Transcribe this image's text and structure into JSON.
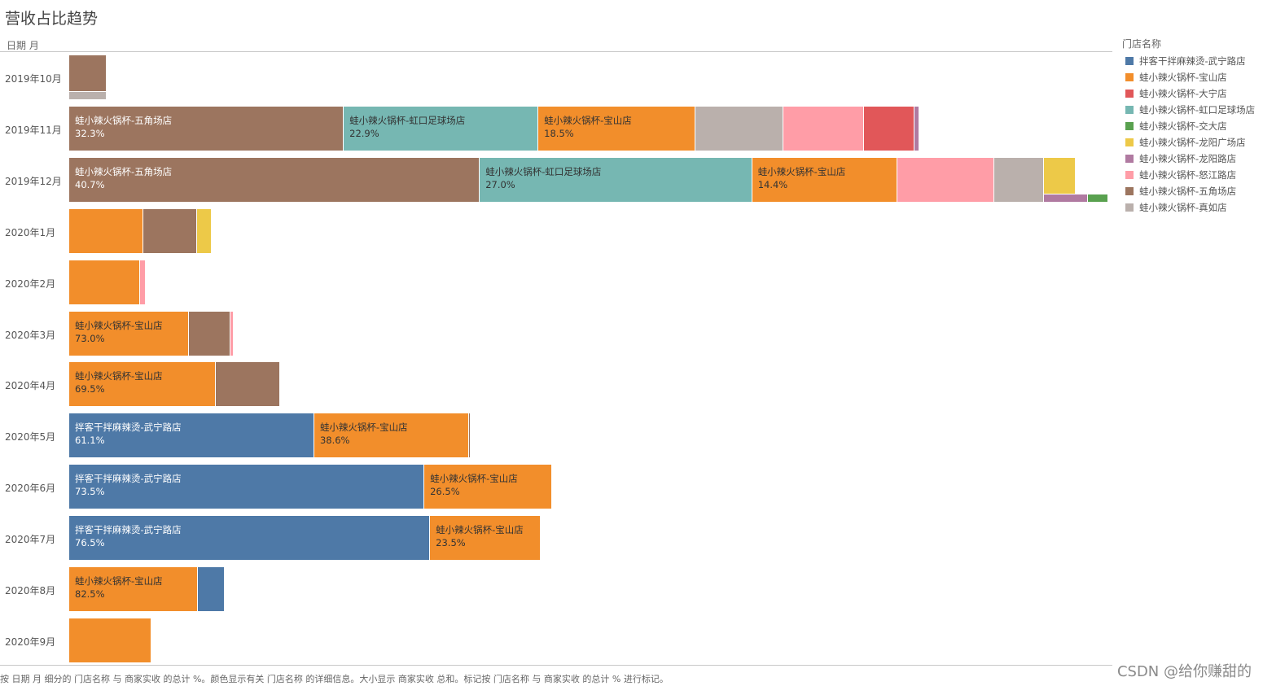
{
  "title": "营收占比趋势",
  "row_header": "日期 月",
  "legend_title": "门店名称",
  "caption": "按 日期 月 细分的 门店名称 与 商家实收 的总计 %。颜色显示有关 门店名称 的详细信息。大小显示 商家实收 总和。标记按 门店名称 与 商家实收 的总计 % 进行标记。",
  "watermark": "CSDN @给你赚甜的",
  "stores": [
    {
      "name": "拌客干拌麻辣烫-武宁路店",
      "color": "#4e79a7",
      "label_color": "#ffffff"
    },
    {
      "name": "蛙小辣火锅杯-宝山店",
      "color": "#f28e2b",
      "label_color": "#333333"
    },
    {
      "name": "蛙小辣火锅杯-大宁店",
      "color": "#e15759",
      "label_color": "#ffffff"
    },
    {
      "name": "蛙小辣火锅杯-虹口足球场店",
      "color": "#76b7b2",
      "label_color": "#333333"
    },
    {
      "name": "蛙小辣火锅杯-交大店",
      "color": "#59a14f",
      "label_color": "#ffffff"
    },
    {
      "name": "蛙小辣火锅杯-龙阳广场店",
      "color": "#edc948",
      "label_color": "#333333"
    },
    {
      "name": "蛙小辣火锅杯-龙阳路店",
      "color": "#b07aa1",
      "label_color": "#ffffff"
    },
    {
      "name": "蛙小辣火锅杯-怒江路店",
      "color": "#ff9da7",
      "label_color": "#333333"
    },
    {
      "name": "蛙小辣火锅杯-五角场店",
      "color": "#9c755f",
      "label_color": "#ffffff"
    },
    {
      "name": "蛙小辣火锅杯-真如店",
      "color": "#bab0ac",
      "label_color": "#333333"
    }
  ],
  "chart_data": {
    "type": "bar",
    "orientation": "horizontal",
    "stacked": true,
    "size_scale_max": 100,
    "categories": [
      "2019年10月",
      "2019年11月",
      "2019年12月",
      "2020年1月",
      "2020年2月",
      "2020年3月",
      "2020年4月",
      "2020年5月",
      "2020年6月",
      "2020年7月",
      "2020年8月",
      "2020年9月"
    ],
    "months": [
      {
        "label": "2019年10月",
        "total": 3.6,
        "segments": [
          {
            "store": 8,
            "pct": 80.0
          },
          {
            "store": 9,
            "pct": 20.0
          }
        ]
      },
      {
        "label": "2019年11月",
        "total": 81.8,
        "segments": [
          {
            "store": 8,
            "pct": 32.3,
            "label": "32.3%"
          },
          {
            "store": 3,
            "pct": 22.9,
            "label": "22.9%"
          },
          {
            "store": 1,
            "pct": 18.5,
            "label": "18.5%"
          },
          {
            "store": 9,
            "pct": 10.3
          },
          {
            "store": 7,
            "pct": 9.5
          },
          {
            "store": 2,
            "pct": 5.9
          },
          {
            "store": 6,
            "pct": 0.6
          }
        ]
      },
      {
        "label": "2019年12月",
        "total": 100,
        "segments": [
          {
            "store": 8,
            "pct": 40.7,
            "label": "40.7%"
          },
          {
            "store": 3,
            "pct": 27.0,
            "label": "27.0%"
          },
          {
            "store": 1,
            "pct": 14.4,
            "label": "14.4%"
          },
          {
            "store": 7,
            "pct": 9.6
          },
          {
            "store": 9,
            "pct": 4.9
          },
          {
            "store": 5,
            "pct": 3.2
          },
          {
            "store": 6,
            "pct": 2.2
          },
          {
            "store": 4,
            "pct": 1.0
          }
        ]
      },
      {
        "label": "2020年1月",
        "total": 13.7,
        "segments": [
          {
            "store": 1,
            "pct": 52.0
          },
          {
            "store": 8,
            "pct": 38.0
          },
          {
            "store": 5,
            "pct": 10.0
          }
        ]
      },
      {
        "label": "2020年2月",
        "total": 7.4,
        "segments": [
          {
            "store": 1,
            "pct": 92.0
          },
          {
            "store": 7,
            "pct": 8.0
          }
        ]
      },
      {
        "label": "2020年3月",
        "total": 15.8,
        "segments": [
          {
            "store": 1,
            "pct": 73.0,
            "label": "73.0%"
          },
          {
            "store": 8,
            "pct": 25.0
          },
          {
            "store": 7,
            "pct": 2.0
          }
        ]
      },
      {
        "label": "2020年4月",
        "total": 20.3,
        "segments": [
          {
            "store": 1,
            "pct": 69.5,
            "label": "69.5%"
          },
          {
            "store": 8,
            "pct": 30.5
          }
        ]
      },
      {
        "label": "2020年5月",
        "total": 38.6,
        "segments": [
          {
            "store": 0,
            "pct": 61.1,
            "label": "61.1%"
          },
          {
            "store": 1,
            "pct": 38.6,
            "label": "38.6%"
          },
          {
            "store": 8,
            "pct": 0.3
          }
        ]
      },
      {
        "label": "2020年6月",
        "total": 46.5,
        "segments": [
          {
            "store": 0,
            "pct": 73.5,
            "label": "73.5%"
          },
          {
            "store": 1,
            "pct": 26.5,
            "label": "26.5%"
          }
        ]
      },
      {
        "label": "2020年7月",
        "total": 45.4,
        "segments": [
          {
            "store": 0,
            "pct": 76.5,
            "label": "76.5%"
          },
          {
            "store": 1,
            "pct": 23.5,
            "label": "23.5%"
          }
        ]
      },
      {
        "label": "2020年8月",
        "total": 15.0,
        "segments": [
          {
            "store": 1,
            "pct": 82.5,
            "label": "82.5%"
          },
          {
            "store": 0,
            "pct": 17.5
          }
        ]
      },
      {
        "label": "2020年9月",
        "total": 7.9,
        "segments": [
          {
            "store": 1,
            "pct": 100.0
          }
        ]
      }
    ],
    "sub_segments": [
      {
        "month": 2,
        "store": 6,
        "pct": 2.2
      },
      {
        "month": 2,
        "store": 4,
        "pct": 1.0
      }
    ]
  }
}
